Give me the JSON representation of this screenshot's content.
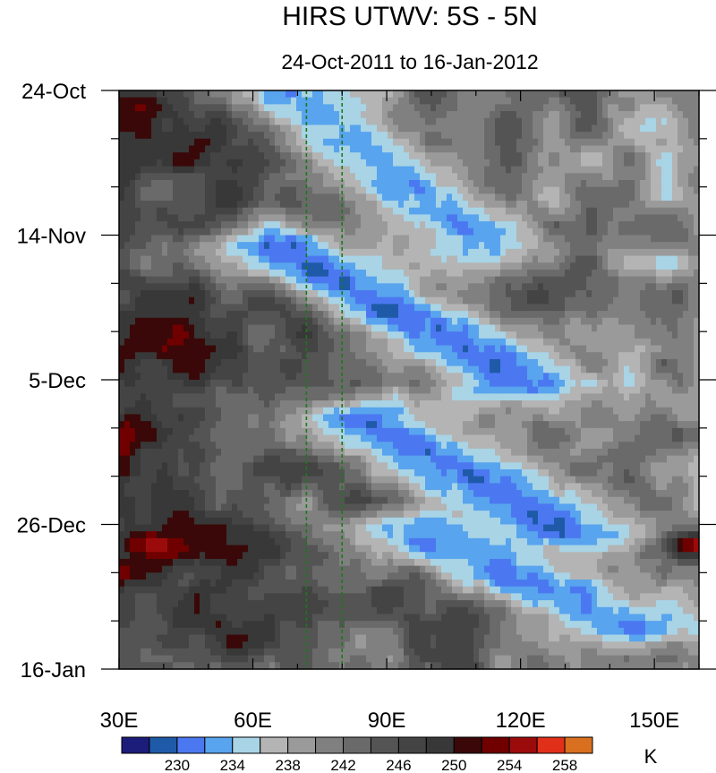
{
  "chart_data": {
    "type": "heatmap",
    "title": "HIRS UTWV: 5S - 5N",
    "subtitle": "24-Oct-2011 to 16-Jan-2012",
    "x_ticks": [
      {
        "value": 30,
        "label": "30E"
      },
      {
        "value": 60,
        "label": "60E"
      },
      {
        "value": 90,
        "label": "90E"
      },
      {
        "value": 120,
        "label": "120E"
      },
      {
        "value": 150,
        "label": "150E"
      }
    ],
    "xlim": [
      30,
      160
    ],
    "y_ticks": [
      {
        "value": 0,
        "label": "24-Oct"
      },
      {
        "value": 21,
        "label": "14-Nov"
      },
      {
        "value": 42,
        "label": "5-Dec"
      },
      {
        "value": 63,
        "label": "26-Dec"
      },
      {
        "value": 84,
        "label": "16-Jan"
      }
    ],
    "ylim": [
      0,
      84
    ],
    "reference_lines_lon": [
      72,
      80
    ],
    "reference_line_color": "#1a7a1a",
    "colorbar": {
      "unit": "K",
      "colors": [
        "#1c1c7a",
        "#1f5aa8",
        "#4b78f0",
        "#58a4ee",
        "#a8d4e6",
        "#b4b4b4",
        "#9a9a9a",
        "#808080",
        "#6a6a6a",
        "#545454",
        "#444444",
        "#383838",
        "#3a0808",
        "#700000",
        "#9c0b0b",
        "#e0301a",
        "#d87020"
      ],
      "levels": [
        228,
        230,
        232,
        234,
        236,
        238,
        240,
        242,
        244,
        246,
        248,
        250,
        252,
        254,
        256,
        258
      ],
      "tick_labels": [
        {
          "value": 230,
          "label": "230"
        },
        {
          "value": 234,
          "label": "234"
        },
        {
          "value": 238,
          "label": "238"
        },
        {
          "value": 242,
          "label": "242"
        },
        {
          "value": 246,
          "label": "246"
        },
        {
          "value": 250,
          "label": "250"
        },
        {
          "value": 254,
          "label": "254"
        },
        {
          "value": 258,
          "label": "258"
        }
      ]
    },
    "wet_bands": [
      {
        "lon_start": 68,
        "lon_end": 110,
        "day_start": 0,
        "day_end": 22,
        "value": 233
      },
      {
        "lon_start": 66,
        "lon_end": 120,
        "day_start": 23,
        "day_end": 42,
        "value": 230.5
      },
      {
        "lon_start": 86,
        "lon_end": 130,
        "day_start": 48,
        "day_end": 64,
        "value": 231
      },
      {
        "lon_start": 96,
        "lon_end": 145,
        "day_start": 64,
        "day_end": 78,
        "value": 232
      }
    ],
    "dry_spots": [
      {
        "lon": 38,
        "day": 66,
        "value": 255
      },
      {
        "lon": 160,
        "day": 66,
        "value": 255
      }
    ]
  }
}
